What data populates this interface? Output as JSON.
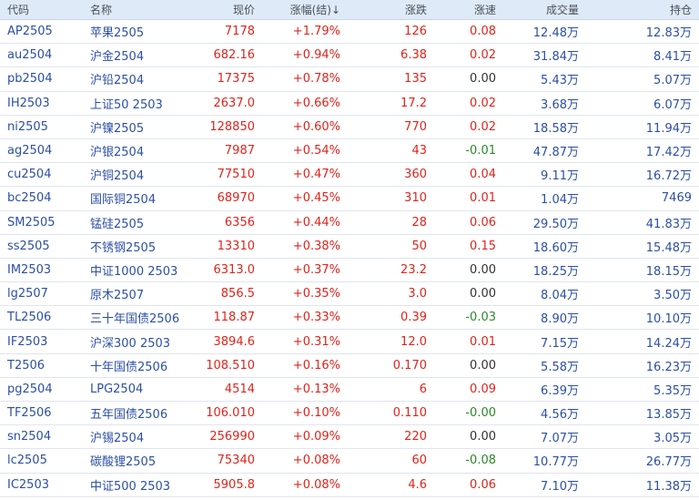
{
  "headers": {
    "code": "代码",
    "name": "名称",
    "price": "现价",
    "change_pct": "涨幅(结)↓",
    "change": "涨跌",
    "speed": "涨速",
    "volume": "成交量",
    "open_interest": "持仓"
  },
  "rows": [
    {
      "code": "AP2505",
      "name": "苹果2505",
      "price": "7178",
      "change_pct": "+1.79%",
      "change": "126",
      "speed": "0.08",
      "speed_dir": "up",
      "volume": "12.48万",
      "oi": "12.83万"
    },
    {
      "code": "au2504",
      "name": "沪金2504",
      "price": "682.16",
      "change_pct": "+0.94%",
      "change": "6.38",
      "speed": "0.02",
      "speed_dir": "up",
      "volume": "31.84万",
      "oi": "8.41万"
    },
    {
      "code": "pb2504",
      "name": "沪铅2504",
      "price": "17375",
      "change_pct": "+0.78%",
      "change": "135",
      "speed": "0.00",
      "speed_dir": "flat",
      "volume": "5.43万",
      "oi": "5.07万"
    },
    {
      "code": "IH2503",
      "name": "上证50 2503",
      "price": "2637.0",
      "change_pct": "+0.66%",
      "change": "17.2",
      "speed": "0.02",
      "speed_dir": "up",
      "volume": "3.68万",
      "oi": "6.07万"
    },
    {
      "code": "ni2505",
      "name": "沪镍2505",
      "price": "128850",
      "change_pct": "+0.60%",
      "change": "770",
      "speed": "0.02",
      "speed_dir": "up",
      "volume": "18.58万",
      "oi": "11.94万"
    },
    {
      "code": "ag2504",
      "name": "沪银2504",
      "price": "7987",
      "change_pct": "+0.54%",
      "change": "43",
      "speed": "-0.01",
      "speed_dir": "down",
      "volume": "47.87万",
      "oi": "17.42万"
    },
    {
      "code": "cu2504",
      "name": "沪铜2504",
      "price": "77510",
      "change_pct": "+0.47%",
      "change": "360",
      "speed": "0.04",
      "speed_dir": "up",
      "volume": "9.11万",
      "oi": "16.72万"
    },
    {
      "code": "bc2504",
      "name": "国际铜2504",
      "price": "68970",
      "change_pct": "+0.45%",
      "change": "310",
      "speed": "0.01",
      "speed_dir": "up",
      "volume": "1.04万",
      "oi": "7469"
    },
    {
      "code": "SM2505",
      "name": "锰硅2505",
      "price": "6356",
      "change_pct": "+0.44%",
      "change": "28",
      "speed": "0.06",
      "speed_dir": "up",
      "volume": "29.50万",
      "oi": "41.83万"
    },
    {
      "code": "ss2505",
      "name": "不锈钢2505",
      "price": "13310",
      "change_pct": "+0.38%",
      "change": "50",
      "speed": "0.15",
      "speed_dir": "up",
      "volume": "18.60万",
      "oi": "15.48万"
    },
    {
      "code": "IM2503",
      "name": "中证1000 2503",
      "price": "6313.0",
      "change_pct": "+0.37%",
      "change": "23.2",
      "speed": "0.00",
      "speed_dir": "flat",
      "volume": "18.25万",
      "oi": "18.15万"
    },
    {
      "code": "lg2507",
      "name": "原木2507",
      "price": "856.5",
      "change_pct": "+0.35%",
      "change": "3.0",
      "speed": "0.00",
      "speed_dir": "flat",
      "volume": "8.04万",
      "oi": "3.50万"
    },
    {
      "code": "TL2506",
      "name": "三十年国债2506",
      "price": "118.87",
      "change_pct": "+0.33%",
      "change": "0.39",
      "speed": "-0.03",
      "speed_dir": "down",
      "volume": "8.90万",
      "oi": "10.10万"
    },
    {
      "code": "IF2503",
      "name": "沪深300 2503",
      "price": "3894.6",
      "change_pct": "+0.31%",
      "change": "12.0",
      "speed": "0.01",
      "speed_dir": "up",
      "volume": "7.15万",
      "oi": "14.24万"
    },
    {
      "code": "T2506",
      "name": "十年国债2506",
      "price": "108.510",
      "change_pct": "+0.16%",
      "change": "0.170",
      "speed": "0.00",
      "speed_dir": "flat",
      "volume": "5.58万",
      "oi": "16.23万"
    },
    {
      "code": "pg2504",
      "name": "LPG2504",
      "price": "4514",
      "change_pct": "+0.13%",
      "change": "6",
      "speed": "0.09",
      "speed_dir": "up",
      "volume": "6.39万",
      "oi": "5.35万"
    },
    {
      "code": "TF2506",
      "name": "五年国债2506",
      "price": "106.010",
      "change_pct": "+0.10%",
      "change": "0.110",
      "speed": "-0.00",
      "speed_dir": "down",
      "volume": "4.56万",
      "oi": "13.85万"
    },
    {
      "code": "sn2504",
      "name": "沪锡2504",
      "price": "256990",
      "change_pct": "+0.09%",
      "change": "220",
      "speed": "0.00",
      "speed_dir": "flat",
      "volume": "7.07万",
      "oi": "3.05万"
    },
    {
      "code": "lc2505",
      "name": "碳酸锂2505",
      "price": "75340",
      "change_pct": "+0.08%",
      "change": "60",
      "speed": "-0.08",
      "speed_dir": "down",
      "volume": "10.77万",
      "oi": "26.77万"
    },
    {
      "code": "IC2503",
      "name": "中证500 2503",
      "price": "5905.8",
      "change_pct": "+0.08%",
      "change": "4.6",
      "speed": "0.06",
      "speed_dir": "up",
      "volume": "7.10万",
      "oi": "11.38万"
    }
  ],
  "colors": {
    "header_bg": "#dfeaf8",
    "up": "#e2231a",
    "down": "#2a8a2a",
    "flat": "#333333",
    "link": "#2b4fa8"
  }
}
